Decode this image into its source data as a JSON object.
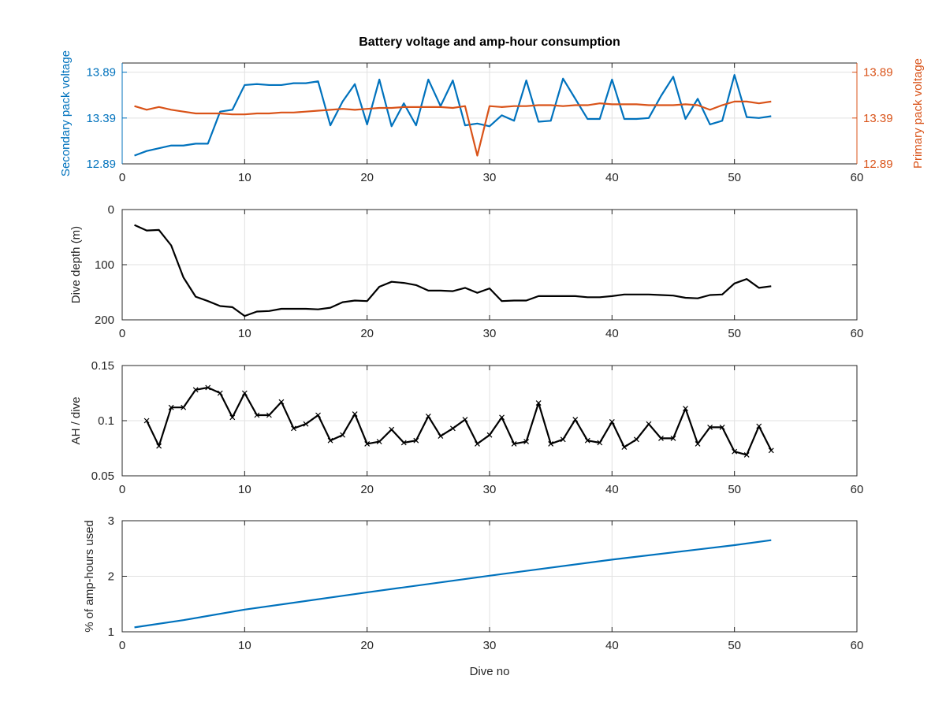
{
  "colors": {
    "secondary": "#0072BD",
    "primary": "#D95319",
    "black": "#000000",
    "grid": "#e1e1e1"
  },
  "chart_data": [
    {
      "type": "line",
      "title": "Battery voltage and amp-hour consumption",
      "xlabel": "",
      "xlim": [
        0,
        60
      ],
      "xticks": [
        0,
        10,
        20,
        30,
        40,
        50,
        60
      ],
      "grid": true,
      "yleft": {
        "label": "Secondary pack voltage",
        "lim": [
          12.89,
          13.99
        ],
        "ticks": [
          12.89,
          13.39,
          13.89
        ],
        "ticklabels": [
          "12.89",
          "13.39",
          "13.89"
        ],
        "color": "#0072BD"
      },
      "yright": {
        "label": "Primary pack voltage",
        "lim": [
          12.89,
          13.99
        ],
        "ticks": [
          12.89,
          13.39,
          13.89
        ],
        "ticklabels": [
          "12.89",
          "13.39",
          "13.89"
        ],
        "color": "#D95319"
      },
      "series": [
        {
          "axis": "left",
          "x": [
            1,
            2,
            3,
            4,
            5,
            6,
            7,
            8,
            9,
            10,
            11,
            12,
            13,
            14,
            15,
            16,
            17,
            18,
            19,
            20,
            21,
            22,
            23,
            24,
            25,
            26,
            27,
            28,
            29,
            30,
            31,
            32,
            33,
            34,
            35,
            36,
            37,
            38,
            39,
            40,
            41,
            42,
            43,
            44,
            45,
            46,
            47,
            48,
            49,
            50,
            51,
            52,
            53
          ],
          "y": [
            12.98,
            13.03,
            13.06,
            13.09,
            13.09,
            13.11,
            13.11,
            13.46,
            13.48,
            13.75,
            13.76,
            13.75,
            13.75,
            13.77,
            13.77,
            13.79,
            13.31,
            13.57,
            13.76,
            13.32,
            13.81,
            13.3,
            13.55,
            13.31,
            13.81,
            13.52,
            13.8,
            13.31,
            13.33,
            13.3,
            13.42,
            13.36,
            13.8,
            13.35,
            13.36,
            13.82,
            13.6,
            13.38,
            13.38,
            13.81,
            13.38,
            13.38,
            13.39,
            13.63,
            13.84,
            13.38,
            13.6,
            13.32,
            13.36,
            13.86,
            13.4,
            13.39,
            13.41
          ]
        },
        {
          "axis": "right",
          "x": [
            1,
            2,
            3,
            4,
            5,
            6,
            7,
            8,
            9,
            10,
            11,
            12,
            13,
            14,
            15,
            16,
            17,
            18,
            19,
            20,
            21,
            22,
            23,
            24,
            25,
            26,
            27,
            28,
            29,
            30,
            31,
            32,
            33,
            34,
            35,
            36,
            37,
            38,
            39,
            40,
            41,
            42,
            43,
            44,
            45,
            46,
            47,
            48,
            49,
            50,
            51,
            52,
            53
          ],
          "y": [
            13.52,
            13.48,
            13.51,
            13.48,
            13.46,
            13.44,
            13.44,
            13.44,
            13.43,
            13.43,
            13.44,
            13.44,
            13.45,
            13.45,
            13.46,
            13.47,
            13.48,
            13.49,
            13.48,
            13.49,
            13.5,
            13.5,
            13.51,
            13.51,
            13.51,
            13.51,
            13.5,
            13.52,
            12.98,
            13.52,
            13.51,
            13.52,
            13.52,
            13.53,
            13.53,
            13.52,
            13.53,
            13.53,
            13.55,
            13.54,
            13.54,
            13.54,
            13.53,
            13.53,
            13.53,
            13.54,
            13.53,
            13.48,
            13.53,
            13.57,
            13.57,
            13.55,
            13.57
          ]
        }
      ]
    },
    {
      "type": "line",
      "xlim": [
        0,
        60
      ],
      "xticks": [
        0,
        10,
        20,
        30,
        40,
        50,
        60
      ],
      "ylabel": "Dive depth (m)",
      "ylim": [
        0,
        200
      ],
      "yreversed": true,
      "yticks": [
        0,
        100,
        200
      ],
      "ytickLabels": [
        "0",
        "100",
        "200"
      ],
      "grid": true,
      "series": [
        {
          "x": [
            1,
            2,
            3,
            4,
            5,
            6,
            7,
            8,
            9,
            10,
            11,
            12,
            13,
            14,
            15,
            16,
            17,
            18,
            19,
            20,
            21,
            22,
            23,
            24,
            25,
            26,
            27,
            28,
            29,
            30,
            31,
            32,
            33,
            34,
            35,
            36,
            37,
            38,
            39,
            40,
            41,
            42,
            43,
            44,
            45,
            46,
            47,
            48,
            49,
            50,
            51,
            52,
            53
          ],
          "y": [
            28,
            38,
            37,
            65,
            123,
            158,
            166,
            175,
            177,
            193,
            185,
            184,
            180,
            180,
            180,
            181,
            178,
            168,
            165,
            166,
            140,
            131,
            133,
            137,
            147,
            147,
            148,
            142,
            151,
            143,
            166,
            165,
            165,
            157,
            157,
            157,
            157,
            159,
            159,
            157,
            154,
            154,
            154,
            155,
            156,
            160,
            161,
            155,
            154,
            134,
            126,
            142,
            139
          ]
        }
      ]
    },
    {
      "type": "line",
      "xlim": [
        0,
        60
      ],
      "xticks": [
        0,
        10,
        20,
        30,
        40,
        50,
        60
      ],
      "ylabel": "AH / dive",
      "ylim": [
        0.05,
        0.15
      ],
      "yticks": [
        0.05,
        0.1,
        0.15
      ],
      "ytickLabels": [
        "0.05",
        "0.1",
        "0.15"
      ],
      "grid": true,
      "markers": "x",
      "series": [
        {
          "x": [
            2,
            3,
            4,
            5,
            6,
            7,
            8,
            9,
            10,
            11,
            12,
            13,
            14,
            15,
            16,
            17,
            18,
            19,
            20,
            21,
            22,
            23,
            24,
            25,
            26,
            27,
            28,
            29,
            30,
            31,
            32,
            33,
            34,
            35,
            36,
            37,
            38,
            39,
            40,
            41,
            42,
            43,
            44,
            45,
            46,
            47,
            48,
            49,
            50,
            51,
            52,
            53
          ],
          "y": [
            0.1,
            0.077,
            0.112,
            0.112,
            0.128,
            0.13,
            0.125,
            0.103,
            0.125,
            0.105,
            0.105,
            0.117,
            0.093,
            0.097,
            0.105,
            0.082,
            0.087,
            0.106,
            0.079,
            0.081,
            0.092,
            0.08,
            0.082,
            0.104,
            0.086,
            0.093,
            0.101,
            0.079,
            0.087,
            0.103,
            0.079,
            0.081,
            0.116,
            0.079,
            0.083,
            0.101,
            0.082,
            0.08,
            0.099,
            0.076,
            0.083,
            0.097,
            0.084,
            0.084,
            0.111,
            0.079,
            0.094,
            0.094,
            0.072,
            0.069,
            0.095,
            0.073
          ]
        }
      ]
    },
    {
      "type": "line",
      "xlabel": "Dive no",
      "xlim": [
        0,
        60
      ],
      "xticks": [
        0,
        10,
        20,
        30,
        40,
        50,
        60
      ],
      "ylabel": "% of amp-hours used",
      "ylim": [
        1,
        3
      ],
      "yticks": [
        1,
        2,
        3
      ],
      "ytickLabels": [
        "1",
        "2",
        "3"
      ],
      "grid": true,
      "series": [
        {
          "x": [
            1,
            5,
            10,
            20,
            30,
            40,
            50,
            53
          ],
          "y": [
            1.08,
            1.21,
            1.4,
            1.71,
            2.01,
            2.3,
            2.56,
            2.65
          ]
        }
      ]
    }
  ]
}
